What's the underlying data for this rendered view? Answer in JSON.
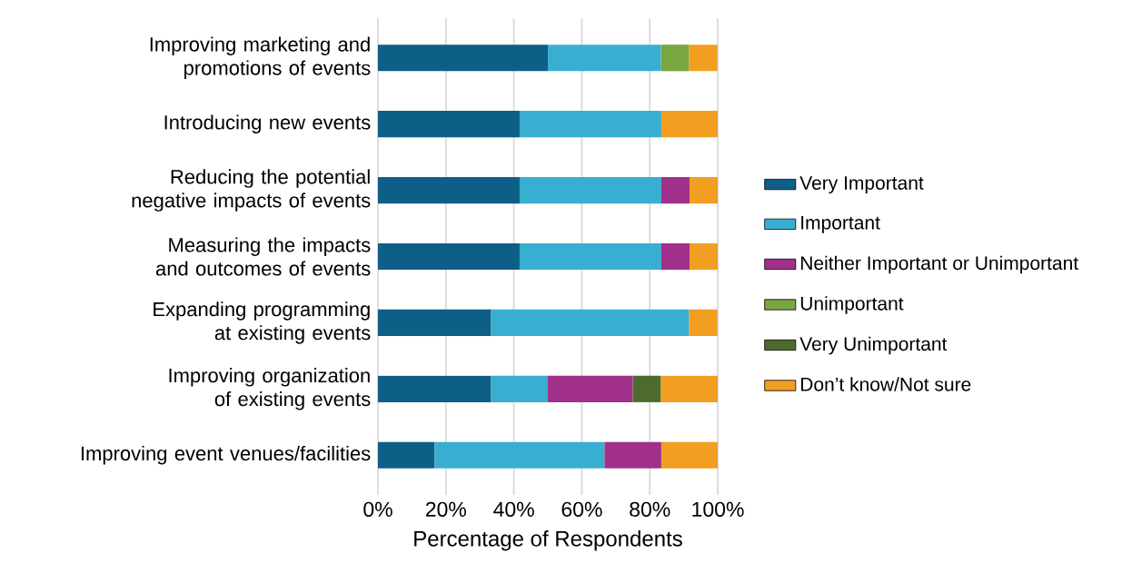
{
  "chart_data": {
    "type": "bar",
    "orientation": "horizontal",
    "stacked": true,
    "xlabel": "Percentage of Respondents",
    "categories": [
      "Improving marketing and promotions of events",
      "Introducing new events",
      "Reducing the potential negative impacts of events",
      "Measuring the impacts and outcomes of events",
      "Expanding programming at existing events",
      "Improving organization of existing events",
      "Improving event venues/facilities"
    ],
    "series": [
      {
        "name": "Very Important",
        "color": "#0e5f87",
        "values": [
          50,
          41.7,
          41.7,
          41.7,
          33.3,
          33.3,
          16.7
        ]
      },
      {
        "name": "Important",
        "color": "#38afd0",
        "values": [
          33.3,
          41.7,
          41.7,
          41.7,
          58.3,
          16.7,
          50
        ]
      },
      {
        "name": "Neither Important or Unimportant",
        "color": "#a0308a",
        "values": [
          null,
          null,
          8.3,
          8.3,
          null,
          25,
          16.7
        ]
      },
      {
        "name": "Unimportant",
        "color": "#78a640",
        "values": [
          8.3,
          null,
          null,
          null,
          null,
          null,
          null
        ]
      },
      {
        "name": "Very Unimportant",
        "color": "#4e6b2f",
        "values": [
          null,
          null,
          null,
          null,
          null,
          8.3,
          null
        ]
      },
      {
        "name": "Don’t know/Not sure",
        "color": "#f29e21",
        "values": [
          8.3,
          16.7,
          8.3,
          8.3,
          8.3,
          16.7,
          16.7
        ]
      }
    ],
    "xlim": [
      0,
      100
    ],
    "xticks": [
      {
        "value": 0,
        "label": "0%"
      },
      {
        "value": 20,
        "label": "20%"
      },
      {
        "value": 40,
        "label": "40%"
      },
      {
        "value": 60,
        "label": "60%"
      },
      {
        "value": 80,
        "label": "80%"
      },
      {
        "value": 100,
        "label": "100%"
      }
    ],
    "grid": "x",
    "legend": "right"
  }
}
